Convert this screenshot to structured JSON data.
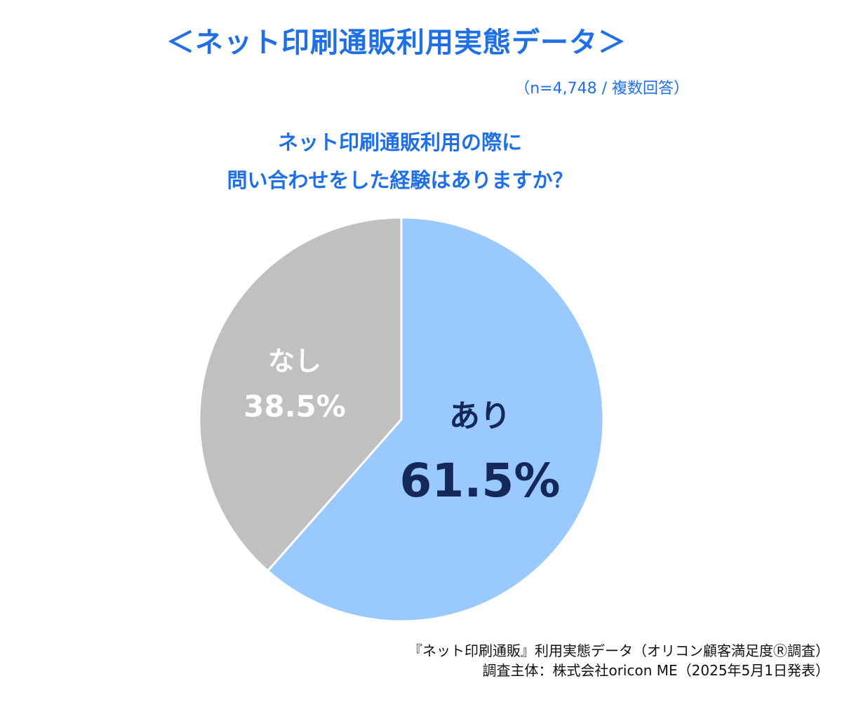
{
  "header": {
    "title": "＜ネット印刷通販利用実態データ＞",
    "sample_note": "（n=4,748 / 複数回答）"
  },
  "question": {
    "line1": "ネット印刷通販利用の際に",
    "line2": "問い合わせをした経験はありますか？"
  },
  "source": {
    "line1": "『ネット印刷通販』利用実態データ（オリコン顧客満足度Ⓡ調査）",
    "line2": "調査主体：株式会社oricon ME（2025年5月1日発表）"
  },
  "chart_data": {
    "type": "pie",
    "title": "ネット印刷通販利用の際に問い合わせをした経験はありますか？",
    "slices": [
      {
        "label": "あり",
        "value": 61.5,
        "value_label": "61.5%",
        "color": "#99c9ff",
        "label_color": "#14285a"
      },
      {
        "label": "なし",
        "value": 38.5,
        "value_label": "38.5%",
        "color": "#c0c0c0",
        "label_color": "#ffffff"
      }
    ],
    "start": "12 o'clock",
    "direction": "clockwise",
    "legend": "none"
  }
}
